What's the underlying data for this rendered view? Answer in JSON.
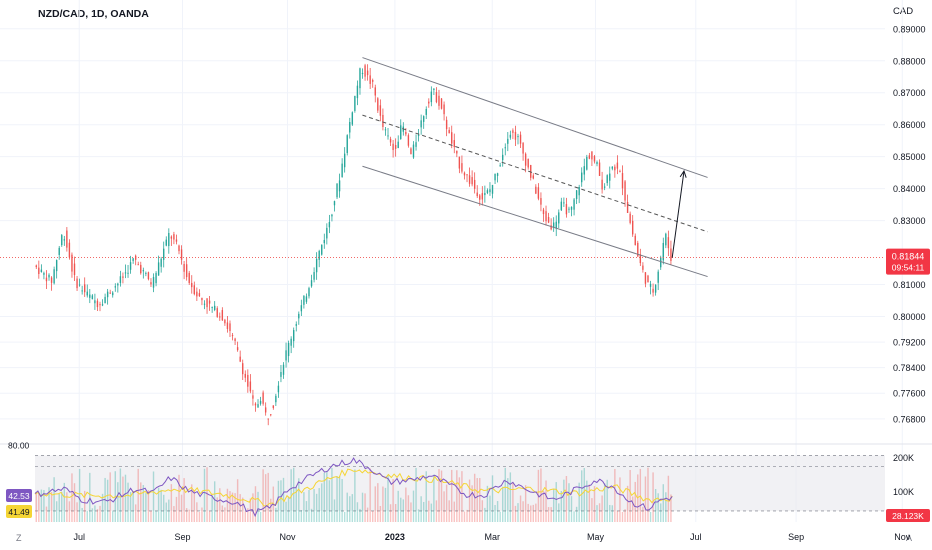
{
  "header": {
    "title": "NZD/CAD, 1D, OANDA",
    "currency": "CAD"
  },
  "corners": {
    "left": "Z",
    "right": "A"
  },
  "price_tag": {
    "value": "0.81844",
    "countdown": "09:54:11"
  },
  "colors": {
    "up": "#26a69a",
    "down": "#ef5350",
    "rsi": "#7e57c2",
    "ma": "#f5d535",
    "price_line": "#ef5350",
    "tag": "#f23645"
  },
  "chart_data": {
    "type": "candlestick",
    "ylim": [
      0.762,
      0.894
    ],
    "price_ticks": [
      "0.89000",
      "0.88000",
      "0.87000",
      "0.86000",
      "0.85000",
      "0.84000",
      "0.83000",
      "0.81000",
      "0.80000",
      "0.79200",
      "0.78400",
      "0.77600",
      "0.76800"
    ],
    "x_labels": [
      {
        "label": "Jul",
        "t": 0.075
      },
      {
        "label": "Sep",
        "t": 0.25
      },
      {
        "label": "Nov",
        "t": 0.428
      },
      {
        "label": "2023",
        "t": 0.61
      },
      {
        "label": "Mar",
        "t": 0.775
      },
      {
        "label": "May",
        "t": 0.95
      },
      {
        "label": "Jul",
        "t": 1.12
      },
      {
        "label": "Sep",
        "t": 1.29
      },
      {
        "label": "Nov",
        "t": 1.47
      }
    ],
    "path": [
      [
        0.0,
        0.816
      ],
      [
        0.03,
        0.811
      ],
      [
        0.05,
        0.827
      ],
      [
        0.07,
        0.811
      ],
      [
        0.09,
        0.807
      ],
      [
        0.11,
        0.804
      ],
      [
        0.13,
        0.808
      ],
      [
        0.15,
        0.812
      ],
      [
        0.17,
        0.818
      ],
      [
        0.185,
        0.814
      ],
      [
        0.2,
        0.81
      ],
      [
        0.215,
        0.818
      ],
      [
        0.23,
        0.826
      ],
      [
        0.245,
        0.821
      ],
      [
        0.26,
        0.812
      ],
      [
        0.28,
        0.806
      ],
      [
        0.3,
        0.803
      ],
      [
        0.32,
        0.8
      ],
      [
        0.34,
        0.792
      ],
      [
        0.36,
        0.78
      ],
      [
        0.375,
        0.771
      ],
      [
        0.385,
        0.775
      ],
      [
        0.395,
        0.768
      ],
      [
        0.405,
        0.772
      ],
      [
        0.42,
        0.784
      ],
      [
        0.44,
        0.796
      ],
      [
        0.46,
        0.806
      ],
      [
        0.48,
        0.818
      ],
      [
        0.5,
        0.829
      ],
      [
        0.52,
        0.845
      ],
      [
        0.54,
        0.865
      ],
      [
        0.555,
        0.878
      ],
      [
        0.575,
        0.872
      ],
      [
        0.59,
        0.86
      ],
      [
        0.61,
        0.852
      ],
      [
        0.625,
        0.86
      ],
      [
        0.64,
        0.85
      ],
      [
        0.66,
        0.863
      ],
      [
        0.675,
        0.871
      ],
      [
        0.69,
        0.866
      ],
      [
        0.705,
        0.856
      ],
      [
        0.72,
        0.848
      ],
      [
        0.74,
        0.842
      ],
      [
        0.76,
        0.837
      ],
      [
        0.775,
        0.84
      ],
      [
        0.79,
        0.848
      ],
      [
        0.805,
        0.858
      ],
      [
        0.82,
        0.856
      ],
      [
        0.835,
        0.848
      ],
      [
        0.85,
        0.84
      ],
      [
        0.865,
        0.831
      ],
      [
        0.88,
        0.828
      ],
      [
        0.895,
        0.835
      ],
      [
        0.91,
        0.832
      ],
      [
        0.925,
        0.842
      ],
      [
        0.94,
        0.851
      ],
      [
        0.955,
        0.847
      ],
      [
        0.965,
        0.84
      ],
      [
        0.98,
        0.848
      ],
      [
        0.995,
        0.844
      ],
      [
        1.01,
        0.83
      ],
      [
        1.025,
        0.818
      ],
      [
        1.04,
        0.81
      ],
      [
        1.05,
        0.808
      ],
      [
        1.06,
        0.816
      ],
      [
        1.07,
        0.826
      ],
      [
        1.08,
        0.8184
      ]
    ],
    "channel_upper": [
      [
        0.555,
        0.881
      ],
      [
        1.14,
        0.8435
      ]
    ],
    "channel_mid": [
      [
        0.555,
        0.863
      ],
      [
        1.14,
        0.8265
      ]
    ],
    "channel_lower": [
      [
        0.555,
        0.847
      ],
      [
        1.14,
        0.8125
      ]
    ],
    "arrow": [
      [
        1.08,
        0.8184
      ],
      [
        1.1,
        0.8455
      ]
    ],
    "current_price": 0.81844,
    "rsi": {
      "ylim": [
        20,
        85
      ],
      "levels": [
        80,
        70,
        30
      ],
      "level_labels": {
        "top": "80.00",
        "rsi": "42.53",
        "ma": "41.49"
      },
      "path": [
        [
          0.0,
          45
        ],
        [
          0.05,
          50
        ],
        [
          0.08,
          40
        ],
        [
          0.12,
          38
        ],
        [
          0.17,
          50
        ],
        [
          0.2,
          46
        ],
        [
          0.23,
          60
        ],
        [
          0.26,
          48
        ],
        [
          0.3,
          42
        ],
        [
          0.34,
          38
        ],
        [
          0.37,
          28
        ],
        [
          0.4,
          33
        ],
        [
          0.43,
          50
        ],
        [
          0.47,
          62
        ],
        [
          0.5,
          70
        ],
        [
          0.54,
          76
        ],
        [
          0.57,
          68
        ],
        [
          0.6,
          56
        ],
        [
          0.64,
          58
        ],
        [
          0.67,
          62
        ],
        [
          0.7,
          54
        ],
        [
          0.73,
          45
        ],
        [
          0.76,
          44
        ],
        [
          0.8,
          58
        ],
        [
          0.84,
          48
        ],
        [
          0.88,
          40
        ],
        [
          0.92,
          50
        ],
        [
          0.95,
          58
        ],
        [
          0.98,
          52
        ],
        [
          1.01,
          38
        ],
        [
          1.04,
          32
        ],
        [
          1.06,
          40
        ],
        [
          1.08,
          42.5
        ]
      ],
      "ma_path": [
        [
          0.0,
          46
        ],
        [
          0.08,
          44
        ],
        [
          0.16,
          44
        ],
        [
          0.24,
          50
        ],
        [
          0.32,
          45
        ],
        [
          0.4,
          36
        ],
        [
          0.48,
          55
        ],
        [
          0.54,
          68
        ],
        [
          0.6,
          62
        ],
        [
          0.68,
          58
        ],
        [
          0.76,
          48
        ],
        [
          0.84,
          50
        ],
        [
          0.92,
          46
        ],
        [
          0.98,
          52
        ],
        [
          1.04,
          40
        ],
        [
          1.08,
          41.5
        ]
      ]
    },
    "volume": {
      "ticks": [
        "200K",
        "100K"
      ],
      "current": "28.123K"
    }
  }
}
